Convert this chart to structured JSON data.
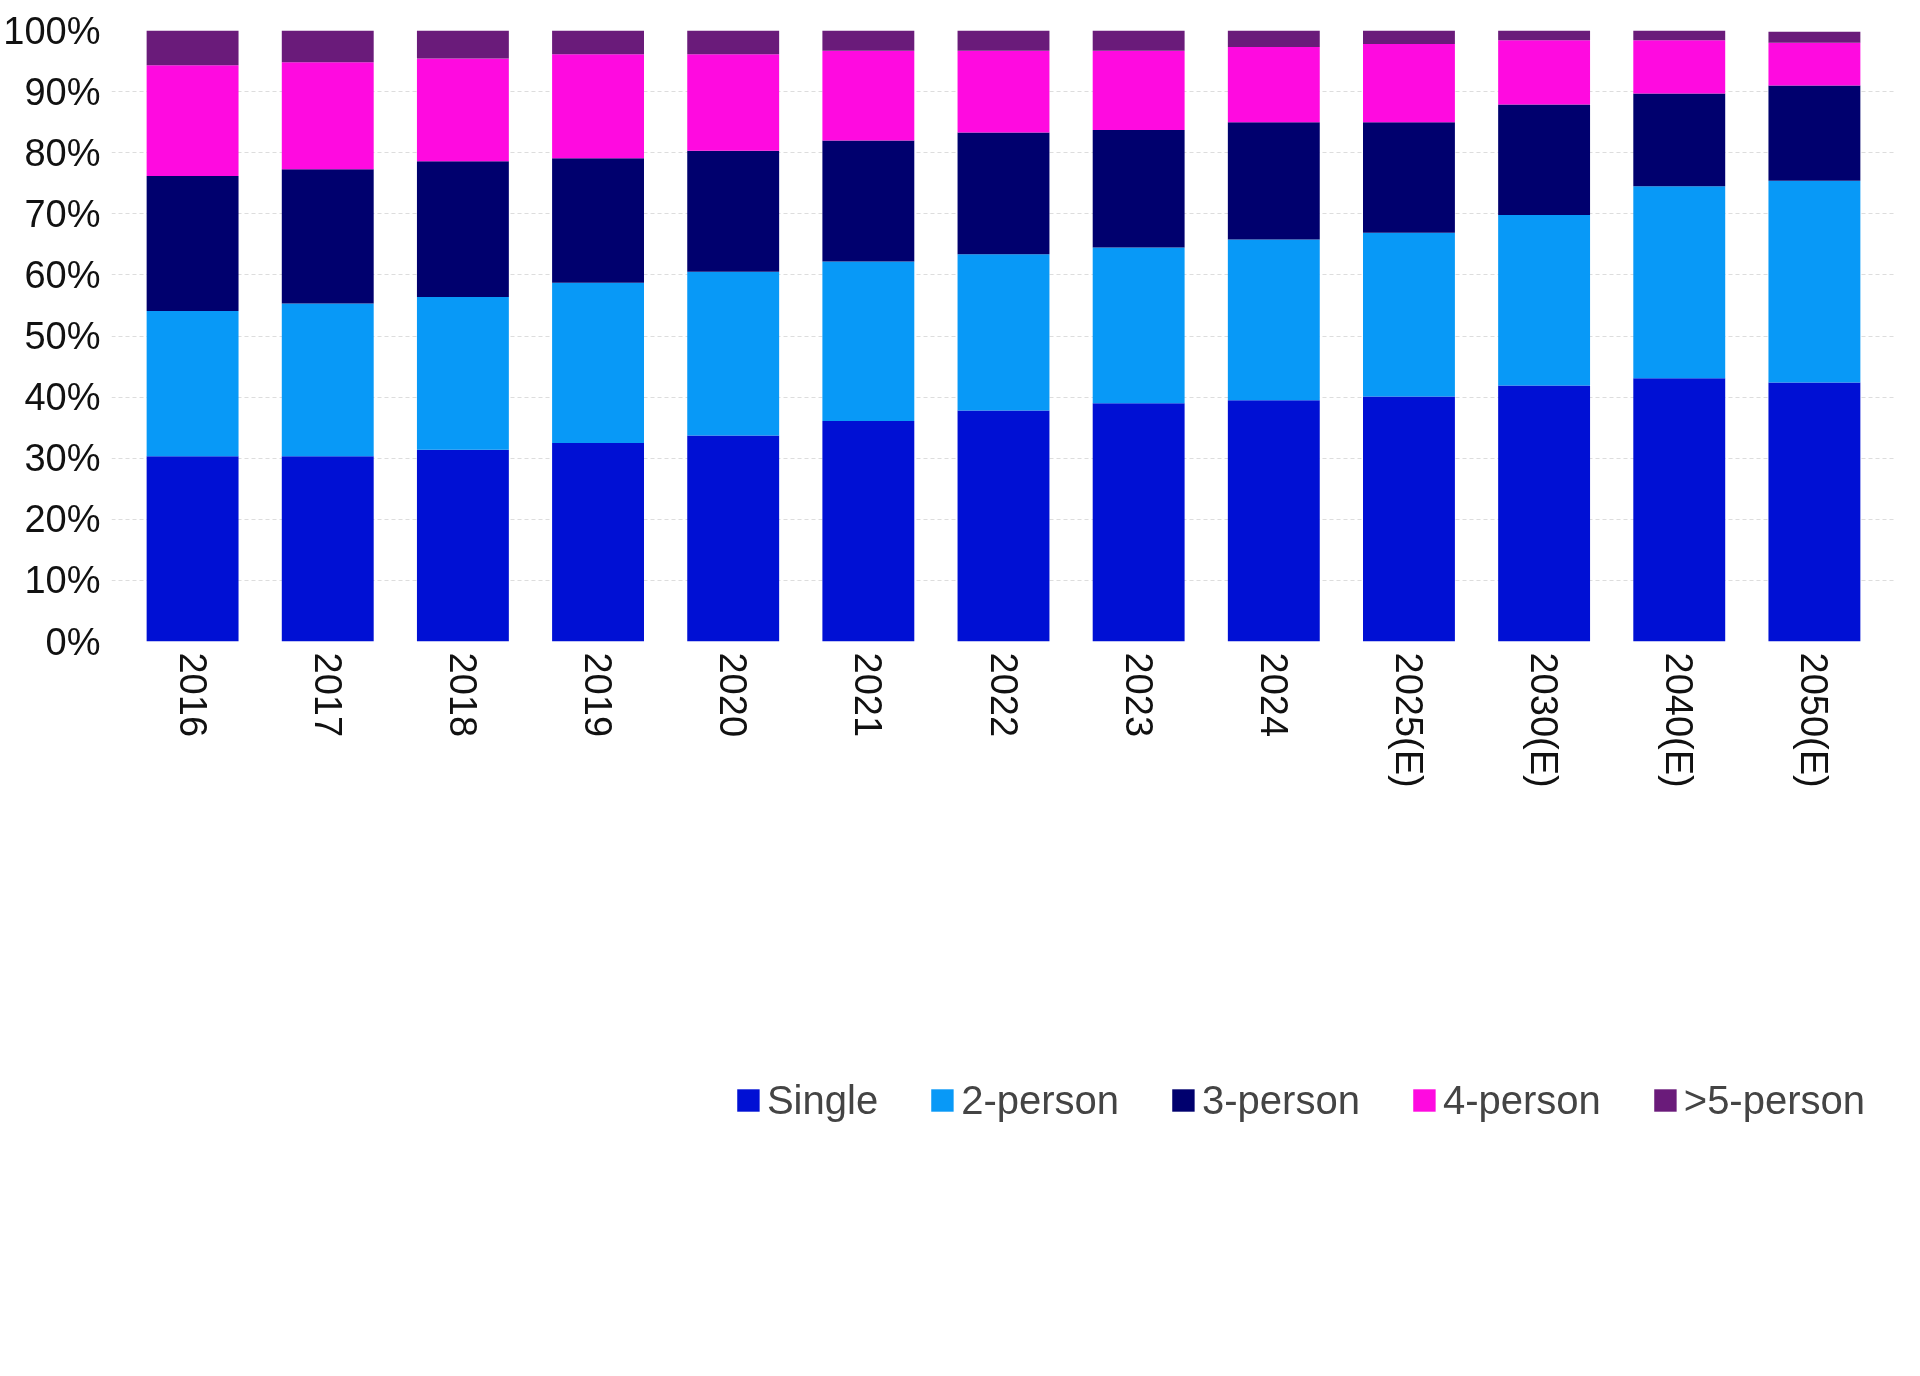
{
  "chart_data": {
    "type": "bar",
    "stacked": true,
    "categories": [
      "2016",
      "2017",
      "2018",
      "2019",
      "2020",
      "2021",
      "2022",
      "2023",
      "2024",
      "2025(E)",
      "2030(E)",
      "2040(E)",
      "2050(E)"
    ],
    "series": [
      {
        "name": "Single",
        "color": "#0010d4",
        "values": [
          30.3,
          30.3,
          31.4,
          32.5,
          33.7,
          36.1,
          37.8,
          39.0,
          39.5,
          40.1,
          41.9,
          43.1,
          42.4
        ]
      },
      {
        "name": "2-person",
        "color": "#0899f7",
        "values": [
          23.8,
          25.0,
          25.0,
          26.2,
          26.8,
          26.1,
          25.6,
          25.5,
          26.3,
          26.8,
          27.9,
          31.4,
          33.0
        ]
      },
      {
        "name": "3-person",
        "color": "#00006e",
        "values": [
          22.1,
          22.0,
          22.2,
          20.4,
          19.8,
          19.8,
          19.9,
          19.2,
          19.2,
          18.1,
          18.1,
          15.2,
          15.6
        ]
      },
      {
        "name": "4-person",
        "color": "#ff0ae0",
        "values": [
          18.1,
          17.5,
          16.8,
          17.0,
          15.8,
          14.7,
          13.4,
          13.0,
          12.3,
          12.8,
          10.5,
          8.7,
          7.0
        ]
      },
      {
        "name": ">5-person",
        "color": "#6a1b7a",
        "values": [
          5.7,
          5.2,
          4.6,
          3.9,
          3.9,
          3.3,
          3.3,
          3.3,
          2.7,
          2.2,
          1.6,
          1.6,
          1.8
        ]
      }
    ],
    "ylim": [
      0,
      100
    ],
    "yticks": [
      {
        "value": 0,
        "label": "0%"
      },
      {
        "value": 10,
        "label": "10%"
      },
      {
        "value": 20,
        "label": "20%"
      },
      {
        "value": 30,
        "label": "30%"
      },
      {
        "value": 40,
        "label": "40%"
      },
      {
        "value": 50,
        "label": "50%"
      },
      {
        "value": 60,
        "label": "60%"
      },
      {
        "value": 70,
        "label": "70%"
      },
      {
        "value": 80,
        "label": "80%"
      },
      {
        "value": 90,
        "label": "90%"
      },
      {
        "value": 100,
        "label": "100%"
      }
    ],
    "grid": "y",
    "legend": "bottom"
  }
}
